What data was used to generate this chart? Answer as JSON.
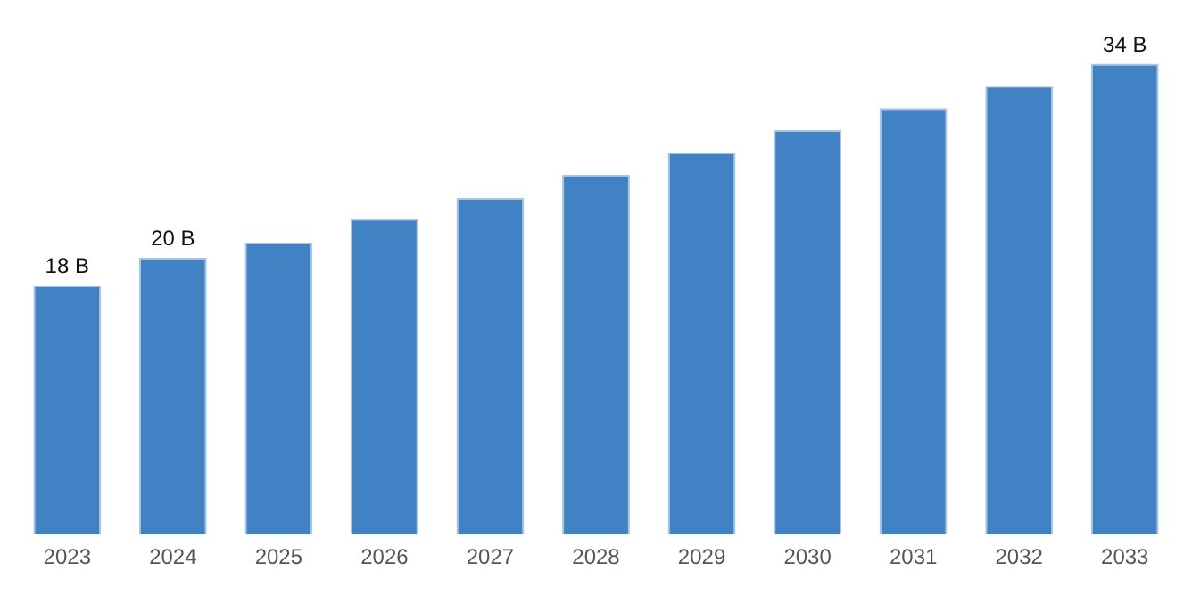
{
  "chart_data": {
    "type": "bar",
    "categories": [
      "2023",
      "2024",
      "2025",
      "2026",
      "2027",
      "2028",
      "2029",
      "2030",
      "2031",
      "2032",
      "2033"
    ],
    "series": [
      {
        "color": "#4182c5",
        "values": [
          18,
          20,
          21.1,
          22.8,
          24.3,
          26.0,
          27.6,
          29.2,
          30.8,
          32.4,
          34.0
        ],
        "value_labels": [
          "18 B",
          "20 B",
          null,
          null,
          null,
          null,
          null,
          null,
          null,
          null,
          "34 B"
        ]
      }
    ],
    "grid": false,
    "legend": false,
    "tick_labels": "x"
  }
}
